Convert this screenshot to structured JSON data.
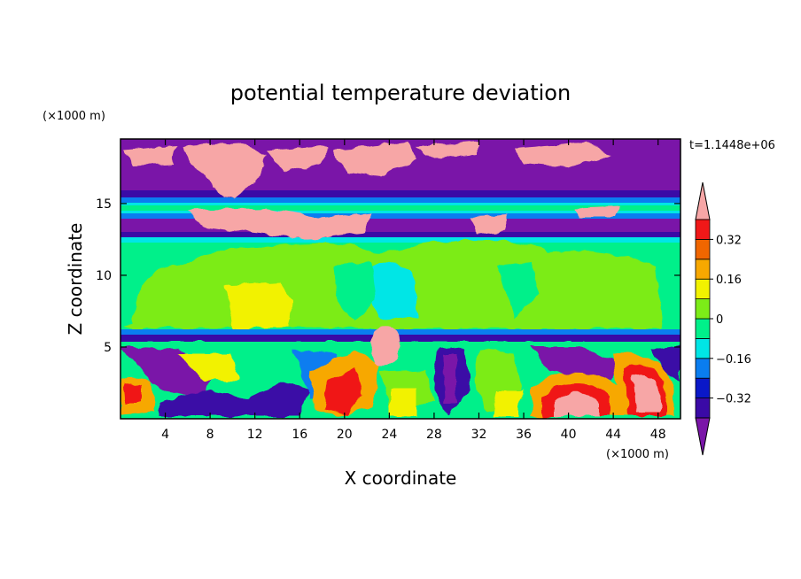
{
  "chart_data": {
    "type": "heatmap",
    "title": "potential temperature deviation",
    "xlabel": "X coordinate",
    "ylabel": "Z coordinate",
    "x_units": "(×1000 m)",
    "y_units": "(×1000 m)",
    "time_label": "t=1.1448e+06",
    "xlim": [
      0,
      50
    ],
    "ylim": [
      0,
      19.5
    ],
    "x_ticks": [
      4,
      8,
      12,
      16,
      20,
      24,
      28,
      32,
      36,
      40,
      44,
      48
    ],
    "y_ticks": [
      5,
      10,
      15
    ],
    "colorbar": {
      "levels": [
        -0.4,
        -0.32,
        -0.24,
        -0.16,
        -0.08,
        0,
        0.08,
        0.16,
        0.24,
        0.32,
        0.4
      ],
      "labeled_ticks": [
        "0.32",
        "0.16",
        "0",
        "−0.16",
        "−0.32"
      ],
      "labeled_values": [
        0.32,
        0.16,
        0,
        -0.16,
        -0.32
      ],
      "colors": [
        "#7a15a8",
        "#3a0aa6",
        "#0a18c8",
        "#0a7df0",
        "#00e6e6",
        "#00f08a",
        "#7cec18",
        "#f2f200",
        "#f7a800",
        "#f06600",
        "#f01818",
        "#f7a6a6"
      ]
    },
    "regions_approx": [
      {
        "z_range": [
          0,
          5
        ],
        "description_value": "mixed, range -0.4 to 0.4"
      },
      {
        "z_range": [
          5.7,
          6.3
        ],
        "value": -0.36
      },
      {
        "z_range": [
          6.3,
          12.8
        ],
        "value": 0.04
      },
      {
        "z_range": [
          12.8,
          14.5
        ],
        "value": -0.36
      },
      {
        "z_range": [
          14.5,
          15.8
        ],
        "value": -0.08
      },
      {
        "z_range": [
          15.8,
          16.8
        ],
        "value": -0.36
      },
      {
        "z_range": [
          16.8,
          19.5
        ],
        "value": -0.36,
        "patches_value": 0.4
      }
    ]
  }
}
